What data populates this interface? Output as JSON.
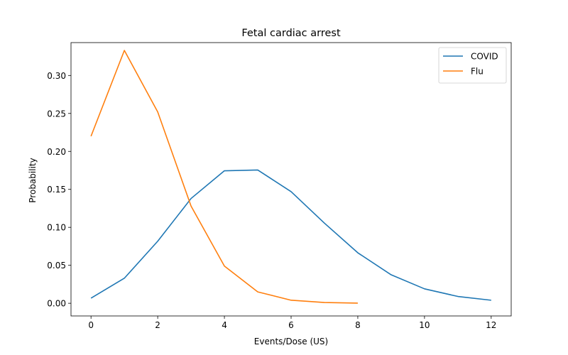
{
  "chart_data": {
    "type": "line",
    "title": "Fetal cardiac arrest",
    "xlabel": "Events/Dose (US)",
    "ylabel": "Probability",
    "xlim": [
      -0.6,
      12.6
    ],
    "ylim": [
      -0.0167,
      0.3433
    ],
    "xticks": [
      0,
      2,
      4,
      6,
      8,
      10,
      12
    ],
    "xtick_labels": [
      "0",
      "2",
      "4",
      "6",
      "8",
      "10",
      "12"
    ],
    "yticks": [
      0.0,
      0.05,
      0.1,
      0.15,
      0.2,
      0.25,
      0.3
    ],
    "ytick_labels": [
      "0.00",
      "0.05",
      "0.10",
      "0.15",
      "0.20",
      "0.25",
      "0.30"
    ],
    "grid": false,
    "legend_position": "top-right",
    "series": [
      {
        "name": "COVID",
        "color": "#1f77b4",
        "x": [
          0,
          1,
          2,
          3,
          4,
          5,
          6,
          7,
          8,
          9,
          10,
          11,
          12
        ],
        "y": [
          0.0067,
          0.033,
          0.0817,
          0.138,
          0.1745,
          0.1755,
          0.147,
          0.1055,
          0.0665,
          0.0375,
          0.019,
          0.009,
          0.004
        ]
      },
      {
        "name": "Flu",
        "color": "#ff7f0e",
        "x": [
          0,
          1,
          2,
          3,
          4,
          5,
          6,
          7,
          8
        ],
        "y": [
          0.22,
          0.333,
          0.252,
          0.128,
          0.049,
          0.015,
          0.004,
          0.001,
          0.0002
        ]
      }
    ]
  }
}
